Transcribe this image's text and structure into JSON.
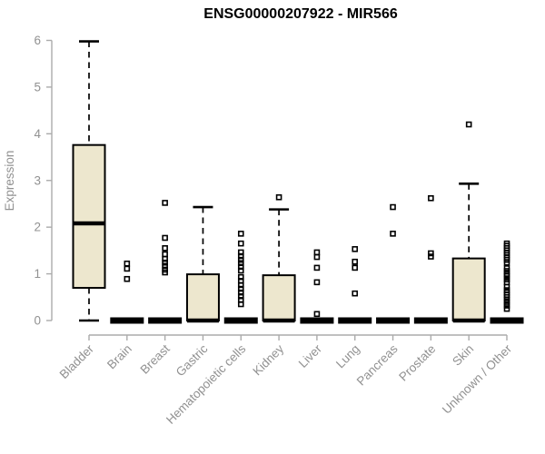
{
  "chart_data": {
    "type": "boxplot",
    "title": "ENSG00000207922 - MIR566",
    "ylabel": "Expression",
    "xlabel": "",
    "ylim": [
      0,
      6
    ],
    "yticks": [
      0,
      1,
      2,
      3,
      4,
      5,
      6
    ],
    "grid": false,
    "legend": "none",
    "categories": [
      "Bladder",
      "Brain",
      "Breast",
      "Gastric",
      "Hematopoietic cells",
      "Kidney",
      "Liver",
      "Lung",
      "Pancreas",
      "Prostate",
      "Skin",
      "Unknown / Other"
    ],
    "boxes": [
      {
        "category": "Bladder",
        "whisker_low": 0.0,
        "q1": 0.7,
        "median": 2.08,
        "q3": 3.76,
        "whisker_high": 5.98,
        "outliers": []
      },
      {
        "category": "Brain",
        "whisker_low": 0,
        "q1": 0,
        "median": 0,
        "q3": 0,
        "whisker_high": 0,
        "outliers": [
          0.89,
          1.11,
          1.22
        ]
      },
      {
        "category": "Breast",
        "whisker_low": 0,
        "q1": 0,
        "median": 0,
        "q3": 0,
        "whisker_high": 0,
        "outliers": [
          1.03,
          1.09,
          1.17,
          1.24,
          1.32,
          1.42,
          1.55,
          1.77,
          2.52
        ]
      },
      {
        "category": "Gastric",
        "whisker_low": 0,
        "q1": 0,
        "median": 0,
        "q3": 0.99,
        "whisker_high": 2.43,
        "outliers": []
      },
      {
        "category": "Hematopoietic cells",
        "whisker_low": 0,
        "q1": 0,
        "median": 0,
        "q3": 0,
        "whisker_high": 0,
        "outliers": [
          0.35,
          0.44,
          0.52,
          0.6,
          0.68,
          0.76,
          0.85,
          0.93,
          1.07,
          1.15,
          1.23,
          1.3,
          1.38,
          1.46,
          1.65,
          1.86
        ]
      },
      {
        "category": "Kidney",
        "whisker_low": 0,
        "q1": 0,
        "median": 0,
        "q3": 0.97,
        "whisker_high": 2.38,
        "outliers": [
          2.64
        ]
      },
      {
        "category": "Liver",
        "whisker_low": 0,
        "q1": 0,
        "median": 0,
        "q3": 0,
        "whisker_high": 0,
        "outliers": [
          0.14,
          0.82,
          1.13,
          1.36,
          1.46
        ]
      },
      {
        "category": "Lung",
        "whisker_low": 0,
        "q1": 0,
        "median": 0,
        "q3": 0,
        "whisker_high": 0,
        "outliers": [
          0.58,
          1.13,
          1.26,
          1.53
        ]
      },
      {
        "category": "Pancreas",
        "whisker_low": 0,
        "q1": 0,
        "median": 0,
        "q3": 0,
        "whisker_high": 0,
        "outliers": [
          1.86,
          2.43
        ]
      },
      {
        "category": "Prostate",
        "whisker_low": 0,
        "q1": 0,
        "median": 0,
        "q3": 0,
        "whisker_high": 0,
        "outliers": [
          1.37,
          1.44,
          2.62
        ]
      },
      {
        "category": "Skin",
        "whisker_low": 0,
        "q1": 0,
        "median": 0,
        "q3": 1.33,
        "whisker_high": 2.93,
        "outliers": [
          4.2
        ]
      },
      {
        "category": "Unknown / Other",
        "whisker_low": 0,
        "q1": 0,
        "median": 0,
        "q3": 0,
        "whisker_high": 0,
        "outliers": [
          0.25,
          0.32,
          0.38,
          0.44,
          0.5,
          0.55,
          0.6,
          0.65,
          0.72,
          0.82,
          0.88,
          0.95,
          1.0,
          1.06,
          1.12,
          1.24,
          1.3,
          1.35,
          1.4,
          1.45,
          1.5,
          1.55,
          1.6,
          1.65
        ]
      }
    ],
    "colors": {
      "box_fill": "#EDE7CE",
      "box_stroke": "#000000",
      "median": "#000000",
      "whisker": "#000000",
      "outlier": "#000000",
      "flat_box": "#000000",
      "axis_line": "#ABABAB",
      "tick_label": "#919191",
      "title": "#000000",
      "background": "#FFFFFF"
    }
  }
}
